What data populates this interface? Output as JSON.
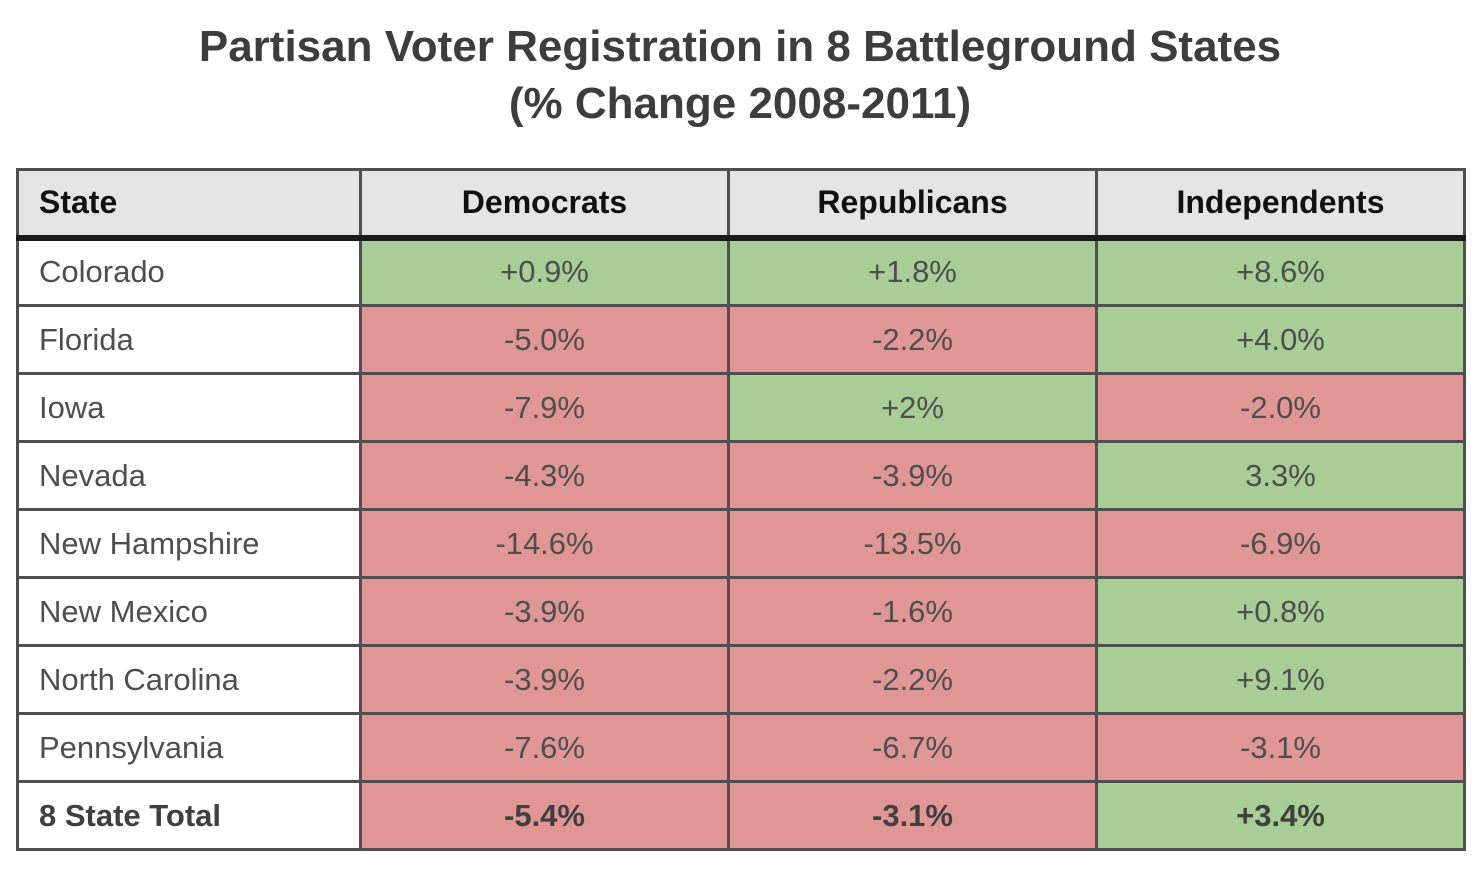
{
  "chart_data": {
    "type": "table",
    "title": "Partisan Voter Registration in 8 Battleground States (% Change 2008-2011)",
    "title_line1": "Partisan Voter Registration in 8 Battleground States",
    "title_line2": "(% Change 2008-2011)",
    "columns": [
      "State",
      "Democrats",
      "Republicans",
      "Independents"
    ],
    "rows": [
      {
        "state": "Colorado",
        "values": [
          "+0.9%",
          "+1.8%",
          "+8.6%"
        ],
        "cell_colors": [
          "green",
          "green",
          "green"
        ],
        "bold": false
      },
      {
        "state": "Florida",
        "values": [
          "-5.0%",
          "-2.2%",
          "+4.0%"
        ],
        "cell_colors": [
          "red",
          "red",
          "green"
        ],
        "bold": false
      },
      {
        "state": "Iowa",
        "values": [
          "-7.9%",
          "+2%",
          "-2.0%"
        ],
        "cell_colors": [
          "red",
          "green",
          "red"
        ],
        "bold": false
      },
      {
        "state": "Nevada",
        "values": [
          "-4.3%",
          "-3.9%",
          "3.3%"
        ],
        "cell_colors": [
          "red",
          "red",
          "green"
        ],
        "bold": false
      },
      {
        "state": "New Hampshire",
        "values": [
          "-14.6%",
          "-13.5%",
          "-6.9%"
        ],
        "cell_colors": [
          "red",
          "red",
          "red"
        ],
        "bold": false
      },
      {
        "state": "New Mexico",
        "values": [
          "-3.9%",
          "-1.6%",
          "+0.8%"
        ],
        "cell_colors": [
          "red",
          "red",
          "green"
        ],
        "bold": false
      },
      {
        "state": "North Carolina",
        "values": [
          "-3.9%",
          "-2.2%",
          "+9.1%"
        ],
        "cell_colors": [
          "red",
          "red",
          "green"
        ],
        "bold": false
      },
      {
        "state": "Pennsylvania",
        "values": [
          "-7.6%",
          "-6.7%",
          "-3.1%"
        ],
        "cell_colors": [
          "red",
          "red",
          "red"
        ],
        "bold": false
      },
      {
        "state": "8 State Total",
        "values": [
          "-5.4%",
          "-3.1%",
          "+3.4%"
        ],
        "cell_colors": [
          "red",
          "red",
          "green"
        ],
        "bold": true
      }
    ],
    "layout_hints": {
      "positive_cells_colored": "green",
      "negative_cells_colored": "red",
      "header_background": "gray",
      "first_column_background": "white"
    }
  },
  "colors": {
    "positive_bg": "#a8cd96",
    "negative_bg": "#e09695",
    "header_bg": "#e4e4e4",
    "border": "#4f4f4f",
    "outer_border": "#3c3c3c",
    "header_rule": "#1c1c1c",
    "body_text": "#4e4e4e",
    "header_text": "#111111",
    "title_text": "#3d3d3d"
  }
}
